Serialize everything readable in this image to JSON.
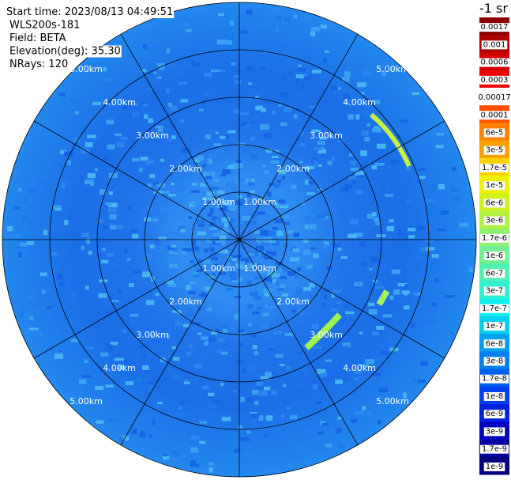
{
  "header": {
    "lines": [
      "Start time: 2023/08/13 04:49:51",
      "WLS200s-181",
      "Field: BETA",
      "Elevation(deg): 35.30",
      "NRays: 120"
    ]
  },
  "ring_labels": [
    "1.00km",
    "2.00km",
    "3.00km",
    "4.00km",
    "5.00km"
  ],
  "colorbar": {
    "title": "-1 sr",
    "labels": [
      "0.0017",
      "0.001",
      "0.0006",
      "0.0003",
      "0.00017",
      "0.0001",
      "6e-5",
      "3e-5",
      "1.7e-5",
      "1e-5",
      "6e-6",
      "3e-6",
      "1.7e-6",
      "1e-6",
      "6e-7",
      "3e-7",
      "1.7e-7",
      "1e-7",
      "6e-8",
      "3e-8",
      "1.7e-8",
      "1e-8",
      "6e-9",
      "3e-9",
      "1.7e-9",
      "1e-9"
    ],
    "colors": [
      "#8b0000",
      "#b00000",
      "#d40000",
      "#f00000",
      "#ffffff",
      "#ff5000",
      "#ff8000",
      "#ffa000",
      "#ffd000",
      "#f0f000",
      "#d0f020",
      "#b0f040",
      "#90f070",
      "#70f090",
      "#50f0b0",
      "#30f0d0",
      "#10f0f0",
      "#00d0f0",
      "#00a0f0",
      "#0080f0",
      "#0060f0",
      "#0040f0",
      "#0020e0",
      "#0000c0",
      "#0000a0",
      "#000080"
    ]
  }
}
